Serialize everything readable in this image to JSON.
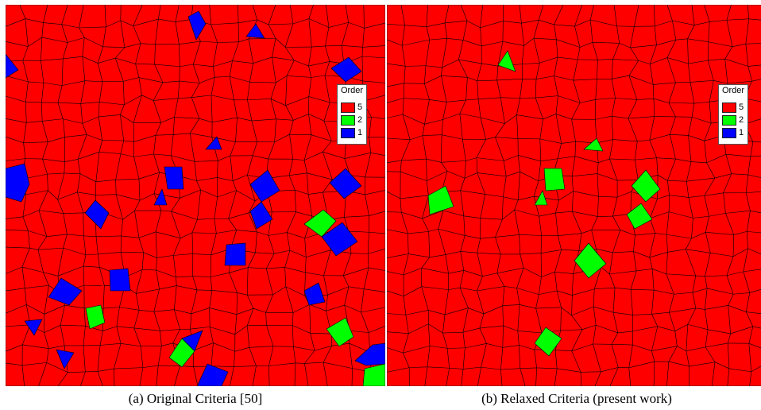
{
  "colors": {
    "order_5": "#ff0000",
    "order_2": "#00ff00",
    "order_1": "#0000ff",
    "mesh_line": "#000000"
  },
  "panels": [
    {
      "caption": "(a) Original Criteria [50]",
      "legend": {
        "title": "Order",
        "entries": [
          {
            "label": "5",
            "color": "#ff0000"
          },
          {
            "label": "2",
            "color": "#00ff00"
          },
          {
            "label": "1",
            "color": "#0000ff"
          }
        ]
      }
    },
    {
      "caption": "(b) Relaxed Criteria (present work)",
      "legend": {
        "title": "Order",
        "entries": [
          {
            "label": "5",
            "color": "#ff0000"
          },
          {
            "label": "2",
            "color": "#00ff00"
          },
          {
            "label": "1",
            "color": "#0000ff"
          }
        ]
      }
    }
  ]
}
